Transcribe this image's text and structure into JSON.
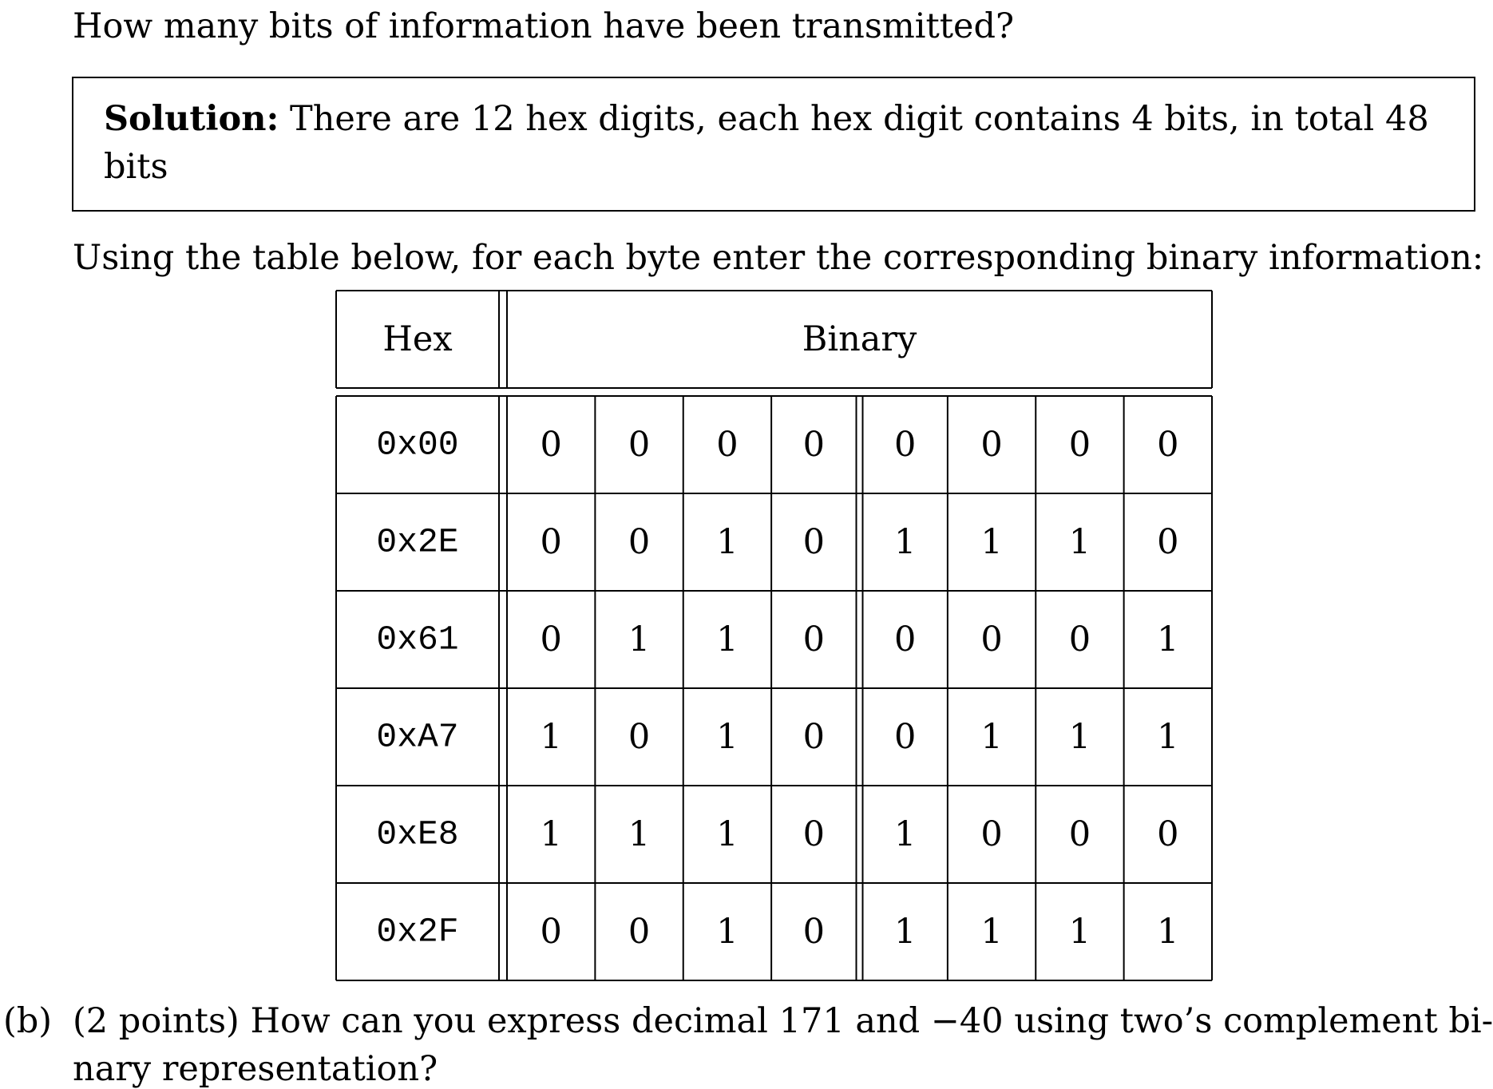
{
  "question": "How many bits of information have been transmitted?",
  "solution": {
    "label": "Solution:",
    "text_line1": "There are 12 hex digits, each hex digit contains 4 bits, in total 48",
    "text_line2": "bits"
  },
  "instruction": "Using the table below, for each byte enter the corresponding binary information:",
  "table": {
    "headers": {
      "hex": "Hex",
      "binary": "Binary"
    },
    "rows": [
      {
        "hex": "0x00",
        "bits": [
          "0",
          "0",
          "0",
          "0",
          "0",
          "0",
          "0",
          "0"
        ]
      },
      {
        "hex": "0x2E",
        "bits": [
          "0",
          "0",
          "1",
          "0",
          "1",
          "1",
          "1",
          "0"
        ]
      },
      {
        "hex": "0x61",
        "bits": [
          "0",
          "1",
          "1",
          "0",
          "0",
          "0",
          "0",
          "1"
        ]
      },
      {
        "hex": "0xA7",
        "bits": [
          "1",
          "0",
          "1",
          "0",
          "0",
          "1",
          "1",
          "1"
        ]
      },
      {
        "hex": "0xE8",
        "bits": [
          "1",
          "1",
          "1",
          "0",
          "1",
          "0",
          "0",
          "0"
        ]
      },
      {
        "hex": "0x2F",
        "bits": [
          "0",
          "0",
          "1",
          "0",
          "1",
          "1",
          "1",
          "1"
        ]
      }
    ]
  },
  "part_b": {
    "label": "(b)",
    "line1": "(2 points) How can you express decimal 171 and −40 using two’s complement bi-",
    "line2": "nary representation?"
  }
}
